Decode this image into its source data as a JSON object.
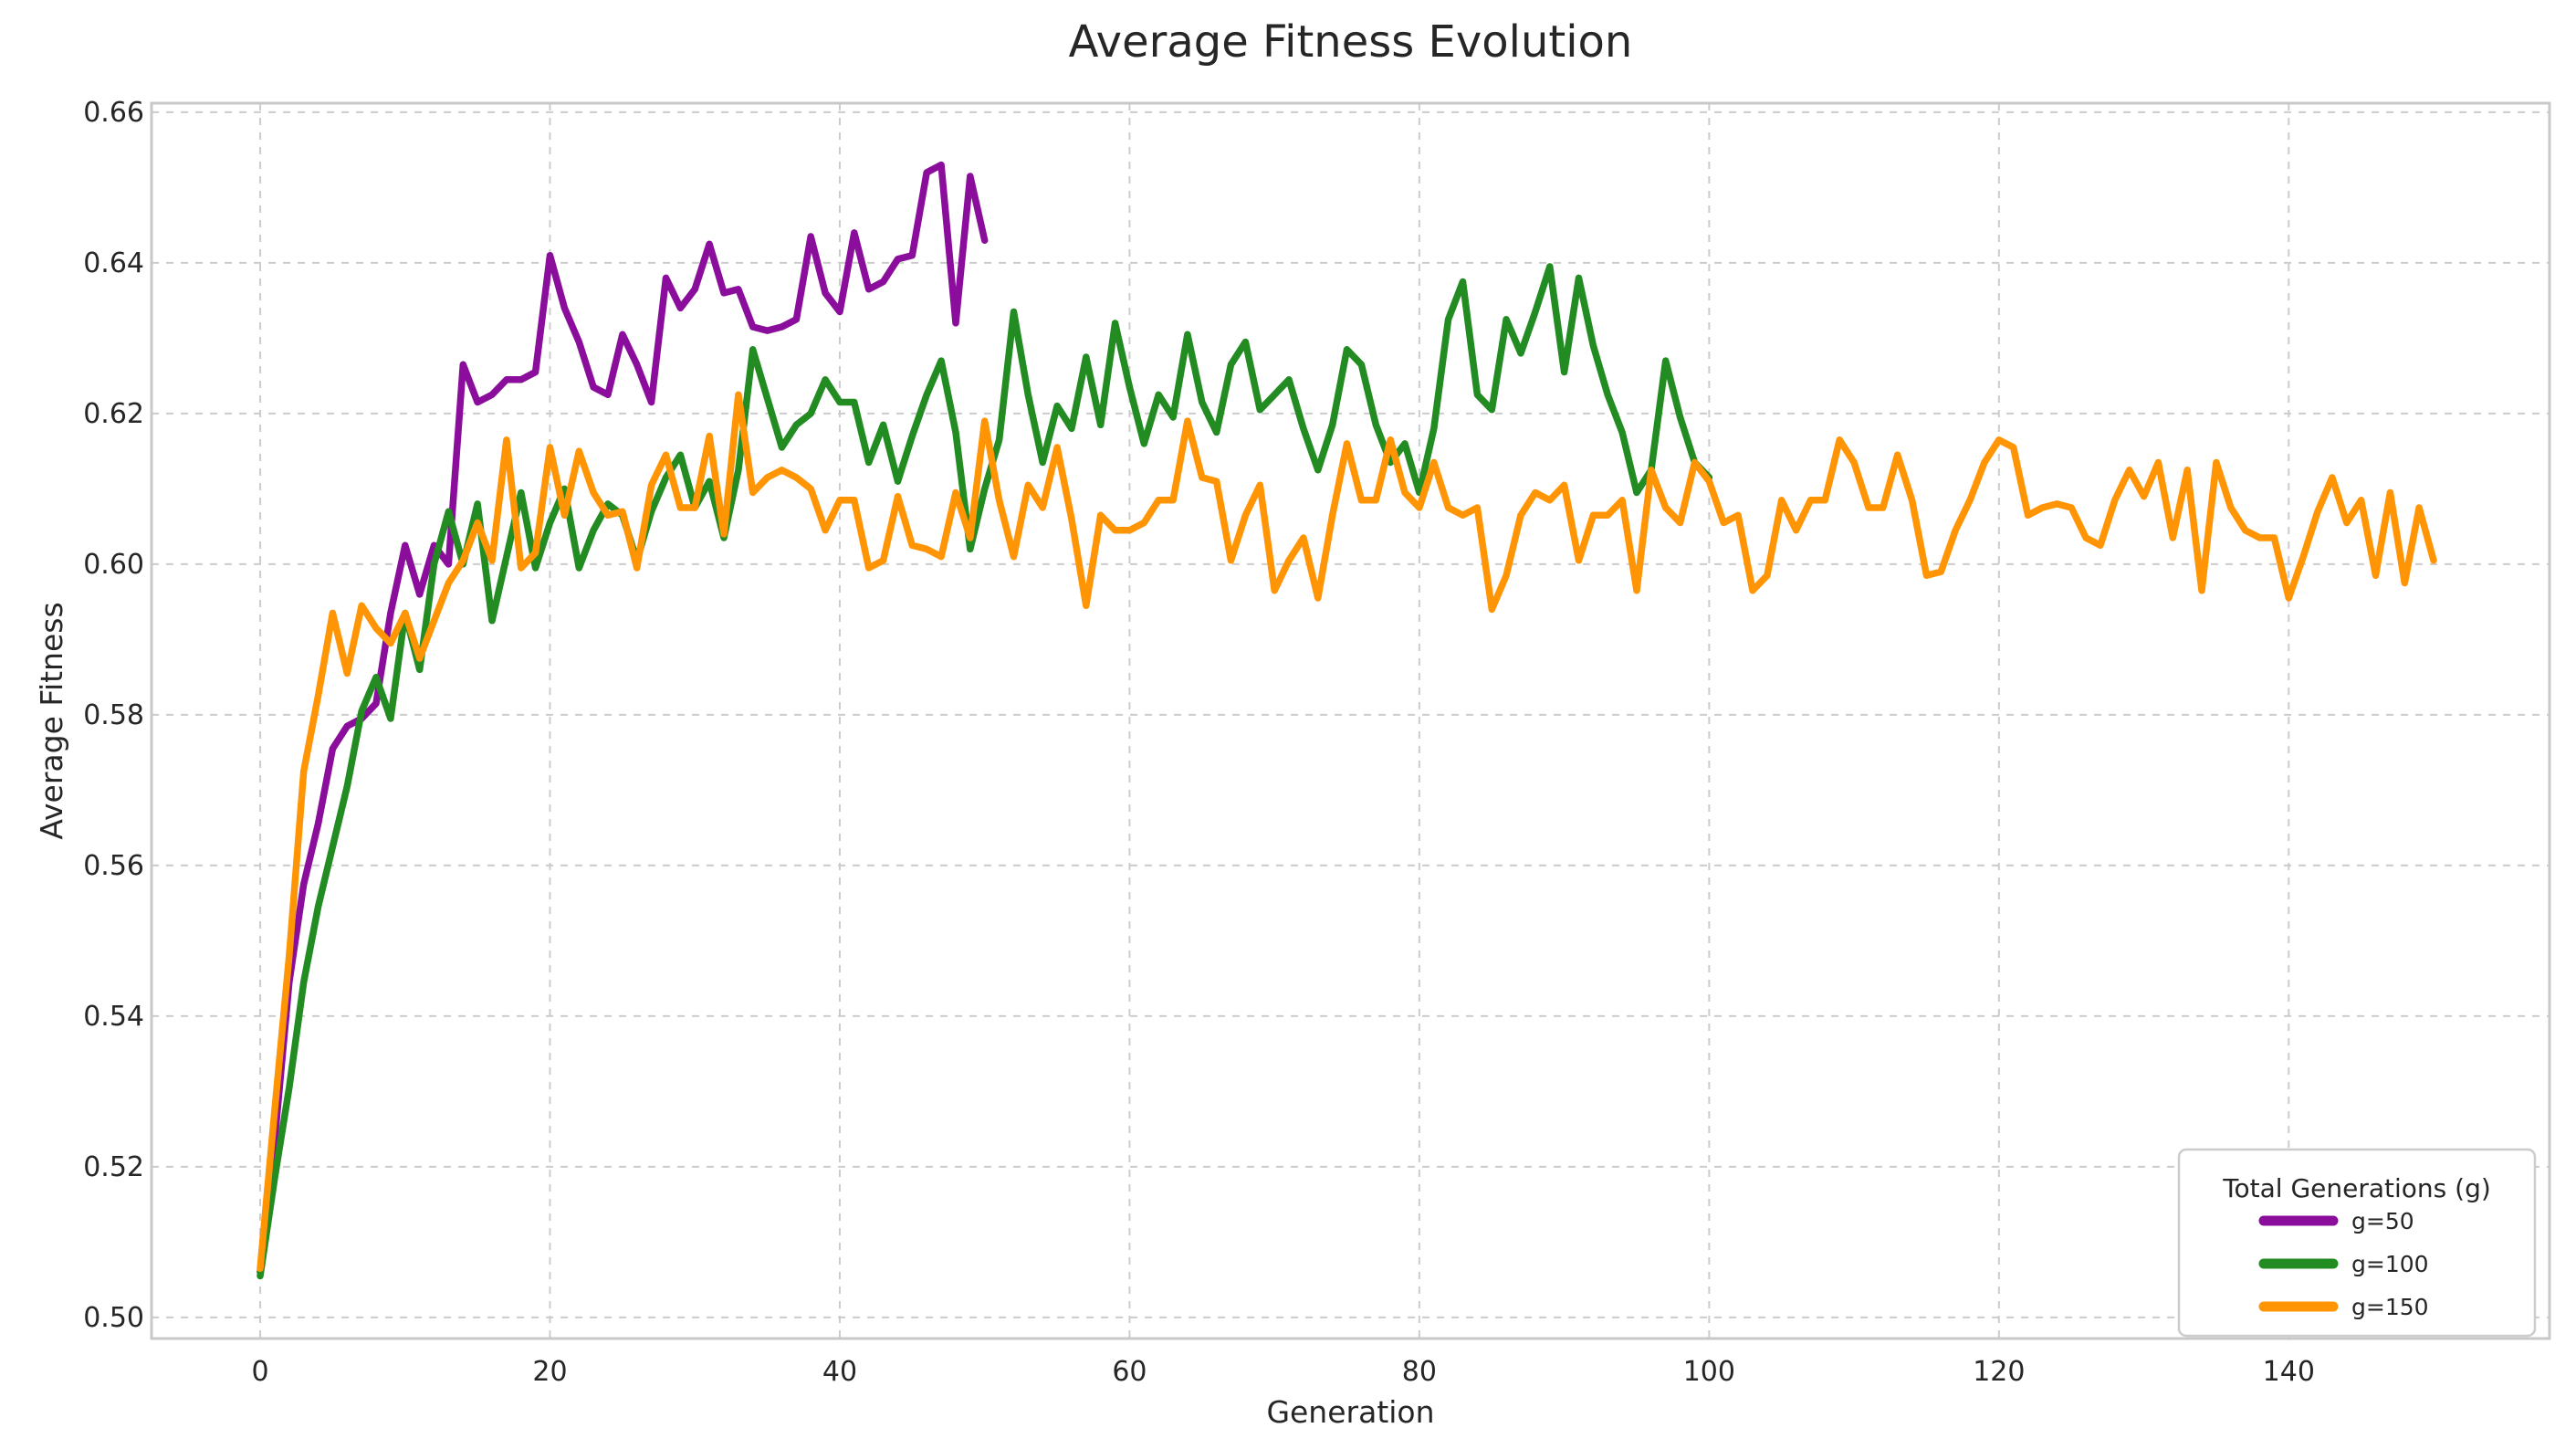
{
  "figure": {
    "background_color": "#ffffff",
    "grid_color": "#cccccc",
    "spine_color": "#c8c8c8",
    "text_color": "#262626"
  },
  "chart_data": {
    "type": "line",
    "title": "Average Fitness Evolution",
    "xlabel": "Generation",
    "ylabel": "Average Fitness",
    "xlim": [
      -7.5,
      158
    ],
    "ylim": [
      0.4972,
      0.6612
    ],
    "x_ticks": [
      0,
      20,
      40,
      60,
      80,
      100,
      120,
      140
    ],
    "x_tick_labels": [
      "0",
      "20",
      "40",
      "60",
      "80",
      "100",
      "120",
      "140"
    ],
    "y_ticks": [
      0.5,
      0.52,
      0.54,
      0.56,
      0.58,
      0.6,
      0.62,
      0.64,
      0.66
    ],
    "y_tick_labels": [
      "0.50",
      "0.52",
      "0.54",
      "0.56",
      "0.58",
      "0.60",
      "0.62",
      "0.64",
      "0.66"
    ],
    "grid": true,
    "grid_style": "dashed",
    "x_start": 0,
    "x_step": 1,
    "legend": {
      "title": "Total Generations (g)",
      "position": "lower right",
      "entries": [
        {
          "label": "g=50",
          "color": "#8A0E9B"
        },
        {
          "label": "g=100",
          "color": "#228B22"
        },
        {
          "label": "g=150",
          "color": "#FF9505"
        }
      ]
    },
    "series": [
      {
        "name": "g=50",
        "color": "#8A0E9B",
        "values": [
          0.506,
          0.5235,
          0.5445,
          0.5575,
          0.5655,
          0.5755,
          0.5785,
          0.5795,
          0.5815,
          0.5935,
          0.6025,
          0.596,
          0.6025,
          0.6,
          0.6265,
          0.6215,
          0.6225,
          0.6245,
          0.6245,
          0.6255,
          0.641,
          0.634,
          0.6295,
          0.6235,
          0.6225,
          0.6305,
          0.6265,
          0.6215,
          0.638,
          0.634,
          0.6365,
          0.6425,
          0.636,
          0.6365,
          0.6315,
          0.631,
          0.6315,
          0.6325,
          0.6435,
          0.636,
          0.6335,
          0.644,
          0.6365,
          0.6375,
          0.6405,
          0.641,
          0.652,
          0.653,
          0.632,
          0.6515,
          0.643
        ]
      },
      {
        "name": "g=100",
        "color": "#228B22",
        "values": [
          0.5055,
          0.5185,
          0.5305,
          0.5445,
          0.5545,
          0.5625,
          0.5705,
          0.5805,
          0.585,
          0.5795,
          0.5935,
          0.586,
          0.6,
          0.607,
          0.6,
          0.608,
          0.5925,
          0.601,
          0.6095,
          0.5995,
          0.6055,
          0.61,
          0.5995,
          0.6045,
          0.608,
          0.6065,
          0.6005,
          0.607,
          0.6115,
          0.6145,
          0.6075,
          0.611,
          0.6035,
          0.6125,
          0.6285,
          0.622,
          0.6155,
          0.6185,
          0.62,
          0.6245,
          0.6215,
          0.6215,
          0.6135,
          0.6185,
          0.611,
          0.617,
          0.6225,
          0.627,
          0.6175,
          0.602,
          0.61,
          0.6165,
          0.6335,
          0.6225,
          0.6135,
          0.621,
          0.618,
          0.6275,
          0.6185,
          0.632,
          0.6235,
          0.616,
          0.6225,
          0.6195,
          0.6305,
          0.6215,
          0.6175,
          0.6265,
          0.6295,
          0.6205,
          0.6225,
          0.6245,
          0.618,
          0.6125,
          0.6185,
          0.6285,
          0.6265,
          0.6185,
          0.6135,
          0.616,
          0.6095,
          0.618,
          0.6325,
          0.6375,
          0.6225,
          0.6205,
          0.6325,
          0.628,
          0.6335,
          0.6395,
          0.6255,
          0.638,
          0.629,
          0.6225,
          0.6175,
          0.6095,
          0.6125,
          0.627,
          0.6195,
          0.6135,
          0.6115
        ]
      },
      {
        "name": "g=150",
        "color": "#FF9505",
        "values": [
          0.5065,
          0.5275,
          0.548,
          0.5725,
          0.5825,
          0.5935,
          0.5855,
          0.5945,
          0.5915,
          0.5895,
          0.5935,
          0.5875,
          0.5925,
          0.5975,
          0.6005,
          0.6055,
          0.6005,
          0.6165,
          0.5995,
          0.6015,
          0.6155,
          0.6065,
          0.615,
          0.6095,
          0.6065,
          0.607,
          0.5995,
          0.6105,
          0.6145,
          0.6075,
          0.6075,
          0.617,
          0.604,
          0.6225,
          0.6095,
          0.6115,
          0.6125,
          0.6115,
          0.61,
          0.6045,
          0.6085,
          0.6085,
          0.5995,
          0.6005,
          0.609,
          0.6025,
          0.602,
          0.601,
          0.6095,
          0.6035,
          0.619,
          0.6085,
          0.601,
          0.6105,
          0.6075,
          0.6155,
          0.606,
          0.5945,
          0.6065,
          0.6045,
          0.6045,
          0.6055,
          0.6085,
          0.6085,
          0.619,
          0.6115,
          0.611,
          0.6005,
          0.6065,
          0.6105,
          0.5965,
          0.6005,
          0.6035,
          0.5955,
          0.6065,
          0.616,
          0.6085,
          0.6085,
          0.6165,
          0.6095,
          0.6075,
          0.6135,
          0.6075,
          0.6065,
          0.6075,
          0.594,
          0.5985,
          0.6065,
          0.6095,
          0.6085,
          0.6105,
          0.6005,
          0.6065,
          0.6065,
          0.6085,
          0.5965,
          0.6125,
          0.6075,
          0.6055,
          0.6135,
          0.611,
          0.6055,
          0.6065,
          0.5965,
          0.5985,
          0.6085,
          0.6045,
          0.6085,
          0.6085,
          0.6165,
          0.6135,
          0.6075,
          0.6075,
          0.6145,
          0.6085,
          0.5985,
          0.599,
          0.6045,
          0.6085,
          0.6135,
          0.6165,
          0.6155,
          0.6065,
          0.6075,
          0.608,
          0.6075,
          0.6035,
          0.6025,
          0.6085,
          0.6125,
          0.609,
          0.6135,
          0.6035,
          0.6125,
          0.5965,
          0.6135,
          0.6075,
          0.6045,
          0.6035,
          0.6035,
          0.5955,
          0.601,
          0.607,
          0.6115,
          0.6055,
          0.6085,
          0.5985,
          0.6095,
          0.5975,
          0.6075,
          0.6005
        ]
      }
    ]
  }
}
